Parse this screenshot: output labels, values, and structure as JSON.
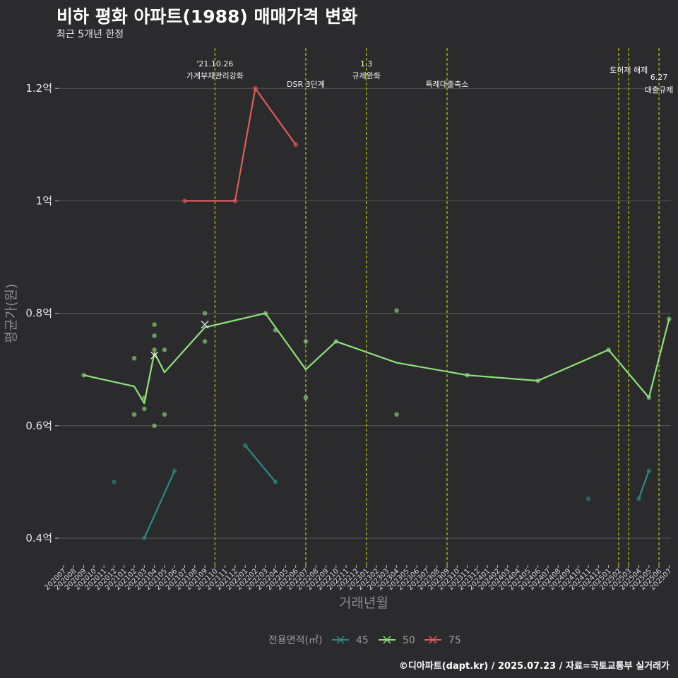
{
  "header": {
    "title": "비하 평화 아파트(1988) 매매가격 변화",
    "subtitle": "최근 5개년 한정"
  },
  "caption": "©디아파트(dapt.kr) / 2025.07.23 / 자료=국토교통부 실거래가",
  "colors": {
    "background": "#2b2b2d",
    "grid": "#5a5a5a",
    "event_line": "#d4d400",
    "s45": "#2a8a85",
    "s50": "#8ee27a",
    "s75": "#e05a5a"
  },
  "chart_data": {
    "type": "line",
    "xlabel": "거래년월",
    "ylabel": "평균가(원)",
    "ylim": [
      0.36,
      1.27
    ],
    "yticks": [
      0.4,
      0.6,
      0.8,
      1.0,
      1.2
    ],
    "ytick_labels": [
      "0.4억",
      "0.6억",
      "0.8억",
      "1억",
      "1.2억"
    ],
    "x_months": [
      "202007",
      "202008",
      "202009",
      "202010",
      "202011",
      "202012",
      "202101",
      "202102",
      "202103",
      "202104",
      "202105",
      "202106",
      "202107",
      "202108",
      "202109",
      "202110",
      "202111",
      "202112",
      "202201",
      "202202",
      "202203",
      "202204",
      "202205",
      "202206",
      "202207",
      "202208",
      "202209",
      "202210",
      "202211",
      "202212",
      "202301",
      "202302",
      "202303",
      "202304",
      "202305",
      "202306",
      "202307",
      "202308",
      "202309",
      "202310",
      "202311",
      "202312",
      "202401",
      "202402",
      "202403",
      "202404",
      "202405",
      "202406",
      "202407",
      "202408",
      "202409",
      "202410",
      "202411",
      "202412",
      "202501",
      "202502",
      "202503",
      "202504",
      "202505",
      "202506",
      "202507"
    ],
    "legend_title": "전용면적(㎡)",
    "series": [
      {
        "name": "45",
        "line": [
          {
            "x": "202103",
            "y": 0.4
          },
          {
            "x": "202106",
            "y": 0.52
          },
          {
            "x": "202201",
            "y": 0.565
          },
          {
            "x": "202204",
            "y": 0.5
          },
          {
            "x": "202504",
            "y": 0.47
          },
          {
            "x": "202505",
            "y": 0.52
          }
        ],
        "segments": [
          [
            0,
            1
          ],
          [
            2,
            3
          ],
          [
            4,
            5
          ]
        ],
        "points": [
          {
            "x": "202012",
            "y": 0.5
          },
          {
            "x": "202103",
            "y": 0.4
          },
          {
            "x": "202106",
            "y": 0.52
          },
          {
            "x": "202201",
            "y": 0.565
          },
          {
            "x": "202204",
            "y": 0.5
          },
          {
            "x": "202411",
            "y": 0.47
          },
          {
            "x": "202504",
            "y": 0.47
          },
          {
            "x": "202505",
            "y": 0.52
          }
        ]
      },
      {
        "name": "50",
        "line": [
          {
            "x": "202009",
            "y": 0.69
          },
          {
            "x": "202102",
            "y": 0.67
          },
          {
            "x": "202103",
            "y": 0.64
          },
          {
            "x": "202104",
            "y": 0.73
          },
          {
            "x": "202105",
            "y": 0.695
          },
          {
            "x": "202109",
            "y": 0.775
          },
          {
            "x": "202203",
            "y": 0.8
          },
          {
            "x": "202207",
            "y": 0.7
          },
          {
            "x": "202210",
            "y": 0.75
          },
          {
            "x": "202304",
            "y": 0.712
          },
          {
            "x": "202311",
            "y": 0.69
          },
          {
            "x": "202406",
            "y": 0.68
          },
          {
            "x": "202501",
            "y": 0.735
          },
          {
            "x": "202505",
            "y": 0.65
          },
          {
            "x": "202507",
            "y": 0.79
          }
        ],
        "segments": [
          [
            0,
            14
          ]
        ],
        "points": [
          {
            "x": "202009",
            "y": 0.69
          },
          {
            "x": "202102",
            "y": 0.72
          },
          {
            "x": "202102",
            "y": 0.62
          },
          {
            "x": "202103",
            "y": 0.65
          },
          {
            "x": "202103",
            "y": 0.63
          },
          {
            "x": "202104",
            "y": 0.78
          },
          {
            "x": "202104",
            "y": 0.76
          },
          {
            "x": "202104",
            "y": 0.735
          },
          {
            "x": "202104",
            "y": 0.6
          },
          {
            "x": "202105",
            "y": 0.735
          },
          {
            "x": "202105",
            "y": 0.62
          },
          {
            "x": "202109",
            "y": 0.8
          },
          {
            "x": "202109",
            "y": 0.75
          },
          {
            "x": "202203",
            "y": 0.8
          },
          {
            "x": "202204",
            "y": 0.77
          },
          {
            "x": "202207",
            "y": 0.75
          },
          {
            "x": "202207",
            "y": 0.65
          },
          {
            "x": "202210",
            "y": 0.75
          },
          {
            "x": "202304",
            "y": 0.805
          },
          {
            "x": "202304",
            "y": 0.62
          },
          {
            "x": "202311",
            "y": 0.69
          },
          {
            "x": "202406",
            "y": 0.68
          },
          {
            "x": "202501",
            "y": 0.735
          },
          {
            "x": "202505",
            "y": 0.65
          },
          {
            "x": "202507",
            "y": 0.79
          }
        ],
        "cross_marks": [
          {
            "x": "202104",
            "y": 0.725
          },
          {
            "x": "202109",
            "y": 0.78
          }
        ]
      },
      {
        "name": "75",
        "line": [
          {
            "x": "202107",
            "y": 1.0
          },
          {
            "x": "202112",
            "y": 1.0
          },
          {
            "x": "202202",
            "y": 1.2
          },
          {
            "x": "202206",
            "y": 1.1
          }
        ],
        "segments": [
          [
            0,
            3
          ]
        ],
        "points": [
          {
            "x": "202107",
            "y": 1.0
          },
          {
            "x": "202112",
            "y": 1.0
          },
          {
            "x": "202202",
            "y": 1.2
          },
          {
            "x": "202206",
            "y": 1.1
          }
        ]
      }
    ],
    "events": [
      {
        "x": "202110",
        "label": [
          "'21.10.26",
          "가계부채관리강화"
        ]
      },
      {
        "x": "202207",
        "label": [
          "DSR 3단계"
        ]
      },
      {
        "x": "202301",
        "label": [
          "1.3",
          "규제완화"
        ]
      },
      {
        "x": "202309",
        "label": [
          "특례대출축소"
        ]
      },
      {
        "x": "202502",
        "label": []
      },
      {
        "x": "202503",
        "label": [
          "토허제 해제"
        ]
      },
      {
        "x": "202506",
        "label": [
          "6.27",
          "대출규제"
        ]
      }
    ]
  }
}
